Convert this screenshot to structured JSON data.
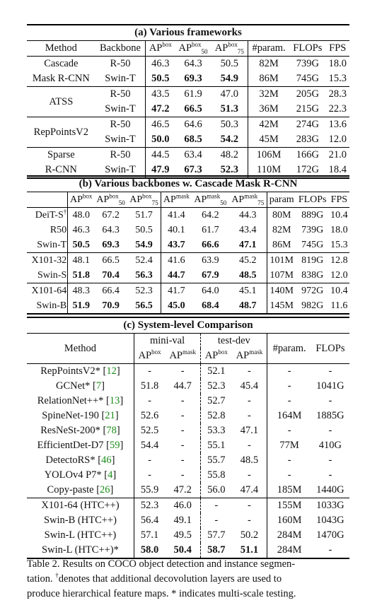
{
  "table_a": {
    "title": "(a) Various frameworks",
    "headers": [
      "Method",
      "Backbone",
      "AP",
      "AP",
      "AP",
      "#param.",
      "FLOPs",
      "FPS"
    ],
    "header_sup": [
      "box",
      "box",
      "box"
    ],
    "header_sub": [
      "",
      "50",
      "75"
    ],
    "rows": [
      {
        "method": "Cascade",
        "backbone": "R-50",
        "ap": "46.3",
        "ap50": "64.3",
        "ap75": "50.5",
        "param": "82M",
        "flops": "739G",
        "fps": "18.0"
      },
      {
        "method": "Mask R-CNN",
        "backbone": "Swin-T",
        "ap": "50.5",
        "ap50": "69.3",
        "ap75": "54.9",
        "param": "86M",
        "flops": "745G",
        "fps": "15.3"
      },
      {
        "method": "ATSS",
        "backbone": "R-50",
        "ap": "43.5",
        "ap50": "61.9",
        "ap75": "47.0",
        "param": "32M",
        "flops": "205G",
        "fps": "28.3"
      },
      {
        "method": "",
        "backbone": "Swin-T",
        "ap": "47.2",
        "ap50": "66.5",
        "ap75": "51.3",
        "param": "36M",
        "flops": "215G",
        "fps": "22.3"
      },
      {
        "method": "RepPointsV2",
        "backbone": "R-50",
        "ap": "46.5",
        "ap50": "64.6",
        "ap75": "50.3",
        "param": "42M",
        "flops": "274G",
        "fps": "13.6"
      },
      {
        "method": "",
        "backbone": "Swin-T",
        "ap": "50.0",
        "ap50": "68.5",
        "ap75": "54.2",
        "param": "45M",
        "flops": "283G",
        "fps": "12.0"
      },
      {
        "method": "Sparse",
        "backbone": "R-50",
        "ap": "44.5",
        "ap50": "63.4",
        "ap75": "48.2",
        "param": "106M",
        "flops": "166G",
        "fps": "21.0"
      },
      {
        "method": "R-CNN",
        "backbone": "Swin-T",
        "ap": "47.9",
        "ap50": "67.3",
        "ap75": "52.3",
        "param": "110M",
        "flops": "172G",
        "fps": "18.4"
      }
    ]
  },
  "table_b": {
    "title": "(b) Various backbones w. Cascade Mask R-CNN",
    "headers": [
      "AP",
      "AP",
      "AP",
      "AP",
      "AP",
      "AP",
      "param",
      "FLOPs",
      "FPS"
    ],
    "header_sup": [
      "box",
      "box",
      "box",
      "mask",
      "mask",
      "mask"
    ],
    "header_sub": [
      "",
      "50",
      "75",
      "",
      "50",
      "75"
    ],
    "rows": [
      {
        "name": "DeiT-S",
        "mark": "†",
        "v": [
          "48.0",
          "67.2",
          "51.7",
          "41.4",
          "64.2",
          "44.3",
          "80M",
          "889G",
          "10.4"
        ]
      },
      {
        "name": "R50",
        "mark": "",
        "v": [
          "46.3",
          "64.3",
          "50.5",
          "40.1",
          "61.7",
          "43.4",
          "82M",
          "739G",
          "18.0"
        ]
      },
      {
        "name": "Swin-T",
        "mark": "",
        "v": [
          "50.5",
          "69.3",
          "54.9",
          "43.7",
          "66.6",
          "47.1",
          "86M",
          "745G",
          "15.3"
        ]
      },
      {
        "name": "X101-32",
        "mark": "",
        "v": [
          "48.1",
          "66.5",
          "52.4",
          "41.6",
          "63.9",
          "45.2",
          "101M",
          "819G",
          "12.8"
        ]
      },
      {
        "name": "Swin-S",
        "mark": "",
        "v": [
          "51.8",
          "70.4",
          "56.3",
          "44.7",
          "67.9",
          "48.5",
          "107M",
          "838G",
          "12.0"
        ]
      },
      {
        "name": "X101-64",
        "mark": "",
        "v": [
          "48.3",
          "66.4",
          "52.3",
          "41.7",
          "64.0",
          "45.1",
          "140M",
          "972G",
          "10.4"
        ]
      },
      {
        "name": "Swin-B",
        "mark": "",
        "v": [
          "51.9",
          "70.9",
          "56.5",
          "45.0",
          "68.4",
          "48.7",
          "145M",
          "982G",
          "11.6"
        ]
      }
    ]
  },
  "table_c": {
    "title": "(c) System-level Comparison",
    "col_method": "Method",
    "group_minival": "mini-val",
    "group_testdev": "test-dev",
    "col_ap": "AP",
    "sup_box": "box",
    "sup_mask": "mask",
    "col_param": "#param.",
    "col_flops": "FLOPs",
    "rows": [
      {
        "name": "RepPointsV2*",
        "ref": "12",
        "v": [
          "-",
          "-",
          "52.1",
          "-",
          "-",
          "-"
        ]
      },
      {
        "name": "GCNet*",
        "ref": "7",
        "v": [
          "51.8",
          "44.7",
          "52.3",
          "45.4",
          "-",
          "1041G"
        ]
      },
      {
        "name": "RelationNet++*",
        "ref": "13",
        "v": [
          "-",
          "-",
          "52.7",
          "-",
          "-",
          "-"
        ]
      },
      {
        "name": "SpineNet-190",
        "ref": "21",
        "v": [
          "52.6",
          "-",
          "52.8",
          "-",
          "164M",
          "1885G"
        ]
      },
      {
        "name": "ResNeSt-200*",
        "ref": "78",
        "v": [
          "52.5",
          "-",
          "53.3",
          "47.1",
          "-",
          "-"
        ]
      },
      {
        "name": "EfficientDet-D7",
        "ref": "59",
        "v": [
          "54.4",
          "-",
          "55.1",
          "-",
          "77M",
          "410G"
        ]
      },
      {
        "name": "DetectoRS*",
        "ref": "46",
        "v": [
          "-",
          "-",
          "55.7",
          "48.5",
          "-",
          "-"
        ]
      },
      {
        "name": "YOLOv4 P7*",
        "ref": "4",
        "v": [
          "-",
          "-",
          "55.8",
          "-",
          "-",
          "-"
        ]
      },
      {
        "name": "Copy-paste",
        "ref": "26",
        "v": [
          "55.9",
          "47.2",
          "56.0",
          "47.4",
          "185M",
          "1440G"
        ]
      },
      {
        "name": "X101-64 (HTC++)",
        "ref": "",
        "v": [
          "52.3",
          "46.0",
          "-",
          "-",
          "155M",
          "1033G"
        ]
      },
      {
        "name": "Swin-B (HTC++)",
        "ref": "",
        "v": [
          "56.4",
          "49.1",
          "-",
          "-",
          "160M",
          "1043G"
        ]
      },
      {
        "name": "Swin-L (HTC++)",
        "ref": "",
        "v": [
          "57.1",
          "49.5",
          "57.7",
          "50.2",
          "284M",
          "1470G"
        ]
      },
      {
        "name": "Swin-L (HTC++)*",
        "ref": "",
        "v": [
          "58.0",
          "50.4",
          "58.7",
          "51.1",
          "284M",
          "-"
        ]
      }
    ]
  },
  "caption": {
    "line1": "Table 2. Results on COCO object detection and instance segmen-",
    "line2_pre": "tation.  ",
    "line2_mark": "†",
    "line2_post": "denotes that additional decovolution layers are used to",
    "line3": "produce hierarchical feature maps. * indicates multi-scale testing."
  }
}
